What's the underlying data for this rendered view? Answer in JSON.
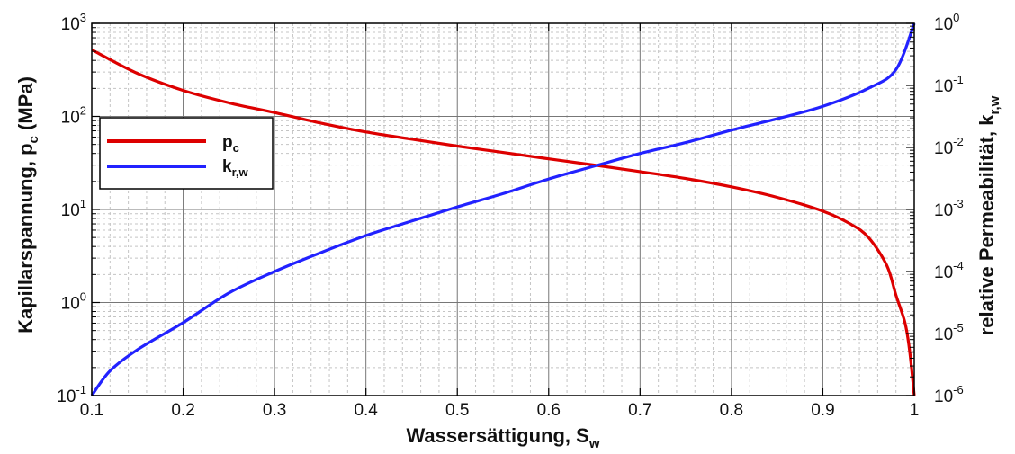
{
  "chart_data": {
    "type": "line",
    "xlabel": {
      "base": "Wassersättigung, S",
      "sub": "w"
    },
    "ylabel_left": {
      "base": "Kapillarspannung, p",
      "sub": "c",
      "suffix": " (MPa)"
    },
    "ylabel_right": {
      "base": "relative Permeabilität, k",
      "sub": "r,w"
    },
    "xlim": [
      0.1,
      1.0
    ],
    "ylim_left": [
      0.1,
      1000
    ],
    "ylim_right": [
      1e-06,
      1
    ],
    "yscale_left": "log",
    "yscale_right": "log",
    "grid": true,
    "x_ticks": [
      "0.1",
      "0.2",
      "0.3",
      "0.4",
      "0.5",
      "0.6",
      "0.7",
      "0.8",
      "0.9",
      "1"
    ],
    "y_left_ticks": [
      {
        "base": "10",
        "exp": "-1"
      },
      {
        "base": "10",
        "exp": "0"
      },
      {
        "base": "10",
        "exp": "1"
      },
      {
        "base": "10",
        "exp": "2"
      },
      {
        "base": "10",
        "exp": "3"
      }
    ],
    "y_right_ticks": [
      {
        "base": "10",
        "exp": "-6"
      },
      {
        "base": "10",
        "exp": "-5"
      },
      {
        "base": "10",
        "exp": "-4"
      },
      {
        "base": "10",
        "exp": "-3"
      },
      {
        "base": "10",
        "exp": "-2"
      },
      {
        "base": "10",
        "exp": "-1"
      },
      {
        "base": "10",
        "exp": "0"
      }
    ],
    "legend": {
      "placement": "upper-left"
    },
    "series": [
      {
        "name": "p",
        "name_sub": "c",
        "axis": "left",
        "color": "#dd0000",
        "x": [
          0.1,
          0.15,
          0.2,
          0.25,
          0.3,
          0.35,
          0.4,
          0.45,
          0.5,
          0.55,
          0.6,
          0.65,
          0.7,
          0.75,
          0.8,
          0.85,
          0.9,
          0.93,
          0.95,
          0.97,
          0.98,
          0.99,
          0.995,
          1.0
        ],
        "y": [
          520,
          290,
          190,
          140,
          110,
          85,
          68,
          57,
          48,
          41,
          35,
          30,
          25.5,
          21.5,
          17.5,
          13.5,
          9.6,
          7.0,
          5.0,
          2.5,
          1.2,
          0.6,
          0.3,
          0.1
        ]
      },
      {
        "name": "k",
        "name_sub": "r,w",
        "axis": "right",
        "color": "#2222ff",
        "x": [
          0.1,
          0.12,
          0.15,
          0.2,
          0.25,
          0.3,
          0.35,
          0.4,
          0.45,
          0.5,
          0.55,
          0.6,
          0.65,
          0.7,
          0.75,
          0.8,
          0.85,
          0.9,
          0.95,
          0.98,
          1.0
        ],
        "y": [
          1e-06,
          2.5e-06,
          5.5e-06,
          1.5e-05,
          4.5e-05,
          0.0001,
          0.0002,
          0.00038,
          0.00065,
          0.0011,
          0.0018,
          0.0031,
          0.005,
          0.008,
          0.012,
          0.019,
          0.029,
          0.046,
          0.09,
          0.18,
          1.0
        ]
      }
    ]
  }
}
